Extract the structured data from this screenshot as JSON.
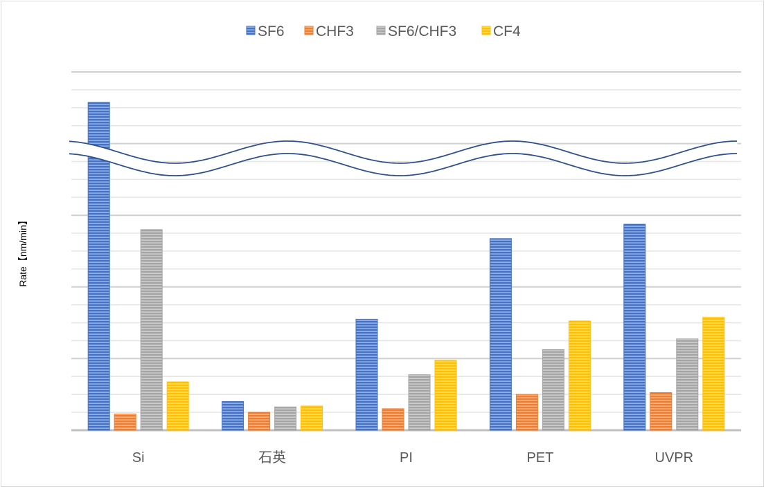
{
  "chart_data": {
    "type": "bar",
    "title": "",
    "xlabel": "",
    "ylabel": "Rate【nm/min】",
    "ylim": [
      0,
      20
    ],
    "y_units_note": "gridline units (no tick labels shown); axis broken between ~16.5 and ~14.5",
    "grid": true,
    "legend_position": "top",
    "categories": [
      "Si",
      "石英",
      "PI",
      "PET",
      "UVPR"
    ],
    "series": [
      {
        "name": "SF6",
        "color": "#4472c4",
        "values": [
          18.3,
          1.6,
          6.2,
          10.7,
          11.5
        ]
      },
      {
        "name": "CHF3",
        "color": "#ed7d31",
        "values": [
          0.9,
          1.0,
          1.2,
          2.0,
          2.1
        ]
      },
      {
        "name": "SF6/CHF3",
        "color": "#a5a5a5",
        "values": [
          11.2,
          1.3,
          3.1,
          4.5,
          5.1
        ]
      },
      {
        "name": "CF4",
        "color": "#ffc000",
        "values": [
          2.7,
          1.35,
          3.9,
          6.1,
          6.3
        ]
      }
    ]
  }
}
